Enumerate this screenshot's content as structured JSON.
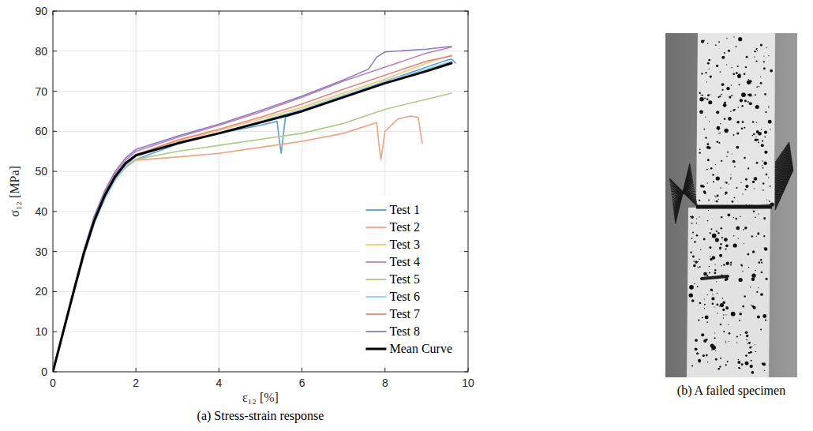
{
  "chart_data": {
    "type": "line",
    "xlabel": "ε₁₂ [%]",
    "ylabel": "σ₁₂ [MPa]",
    "xlim": [
      0,
      10
    ],
    "ylim": [
      0,
      90
    ],
    "xticks": [
      0,
      2,
      4,
      6,
      8,
      10
    ],
    "yticks": [
      0,
      10,
      20,
      30,
      40,
      50,
      60,
      70,
      80,
      90
    ],
    "grid": true,
    "legend": "lower right",
    "series": [
      {
        "name": "Test 1",
        "color": "#5b9fd3",
        "x": [
          0,
          0.25,
          0.5,
          0.75,
          1,
          1.25,
          1.5,
          1.75,
          2,
          3,
          4,
          5,
          5.4,
          5.45,
          5.5,
          5.6,
          6,
          7,
          8,
          9,
          9.5,
          9.6,
          9.7
        ],
        "values": [
          0,
          10,
          20,
          29.5,
          37.5,
          43.5,
          48,
          51,
          53,
          56.8,
          59.5,
          61.5,
          62.5,
          58,
          54.5,
          63.5,
          65,
          68.5,
          72.5,
          76,
          77.8,
          78,
          77
        ]
      },
      {
        "name": "Test 2",
        "color": "#f2a27e",
        "x": [
          0,
          0.25,
          0.5,
          0.75,
          1,
          1.25,
          1.5,
          1.75,
          2,
          3,
          4,
          5,
          6,
          7,
          7.8,
          7.85,
          7.9,
          8,
          8.3,
          8.6,
          8.8,
          8.85,
          8.9
        ],
        "values": [
          0,
          10,
          20,
          29.5,
          37.5,
          43.5,
          48,
          51,
          52.8,
          53.6,
          54.5,
          56,
          57.5,
          59.5,
          62.2,
          57,
          53,
          60,
          63,
          63.8,
          63.5,
          60,
          57
        ]
      },
      {
        "name": "Test 3",
        "color": "#f5c86e",
        "x": [
          0,
          0.25,
          0.5,
          0.75,
          1,
          1.25,
          1.5,
          1.75,
          2,
          3,
          4,
          5,
          6,
          7,
          8,
          9,
          9.6
        ],
        "values": [
          0,
          10,
          20,
          29.8,
          38,
          44,
          48.8,
          52,
          54,
          57.5,
          60.2,
          63,
          66,
          69.5,
          73,
          77,
          79
        ]
      },
      {
        "name": "Test 4",
        "color": "#b783c0",
        "x": [
          0,
          0.25,
          0.5,
          0.75,
          1,
          1.25,
          1.5,
          1.75,
          2,
          3,
          4,
          5,
          6,
          7,
          8,
          9,
          9.6
        ],
        "values": [
          0,
          10.2,
          20.3,
          30.2,
          38.6,
          44.8,
          49.5,
          52.8,
          55,
          58.5,
          61.5,
          64.8,
          68.5,
          72.5,
          76,
          79.5,
          81
        ]
      },
      {
        "name": "Test 5",
        "color": "#aacb84",
        "x": [
          0,
          0.25,
          0.5,
          0.75,
          1,
          1.25,
          1.5,
          1.75,
          2,
          3,
          4,
          5,
          6,
          7,
          8,
          9,
          9.6
        ],
        "values": [
          0,
          10,
          20,
          29.5,
          37.5,
          43.5,
          48.2,
          51.2,
          53,
          55,
          56.5,
          58,
          59.5,
          62,
          65.5,
          68,
          69.5
        ]
      },
      {
        "name": "Test 6",
        "color": "#8fd0ef",
        "x": [
          0,
          0.25,
          0.5,
          0.75,
          1,
          1.25,
          1.5,
          1.75,
          2,
          3,
          4,
          5,
          6,
          7,
          8,
          9,
          9.6
        ],
        "values": [
          0,
          9.8,
          19.6,
          29,
          37,
          43,
          47.8,
          51.2,
          53.8,
          57,
          59.5,
          62.5,
          65.5,
          69,
          72.5,
          75.5,
          77.5
        ]
      },
      {
        "name": "Test 7",
        "color": "#e3857f",
        "x": [
          0,
          0.25,
          0.5,
          0.75,
          1,
          1.25,
          1.5,
          1.75,
          2,
          3,
          4,
          5,
          6,
          7,
          8,
          9,
          9.6
        ],
        "values": [
          0,
          10,
          20,
          29.8,
          38,
          44.2,
          49,
          52.2,
          54.2,
          57.8,
          60.5,
          63.5,
          66.8,
          70.5,
          74,
          77.5,
          78.8
        ]
      },
      {
        "name": "Test 8",
        "color": "#8e7cc0",
        "x": [
          0,
          0.25,
          0.5,
          0.75,
          1,
          1.25,
          1.5,
          1.75,
          2,
          3,
          4,
          5,
          6,
          7,
          7.6,
          7.8,
          8,
          9,
          9.6
        ],
        "values": [
          0,
          10.3,
          20.5,
          30.5,
          39,
          45.2,
          50,
          53.3,
          55.5,
          58.8,
          61.8,
          65.2,
          68.8,
          72.8,
          75.5,
          78.5,
          79.8,
          80.5,
          81.2
        ]
      },
      {
        "name": "Mean Curve",
        "color": "#000000",
        "x": [
          0,
          0.25,
          0.5,
          0.75,
          1,
          1.25,
          1.5,
          1.75,
          2,
          3,
          4,
          5,
          6,
          7,
          8,
          9,
          9.6
        ],
        "values": [
          0,
          10,
          20,
          29.7,
          37.8,
          44,
          48.7,
          52,
          54,
          57,
          59.5,
          62.2,
          65,
          68.5,
          72,
          75,
          77
        ]
      }
    ]
  },
  "captions": [
    "(a) Stress-strain response",
    "(b) A failed specimen"
  ]
}
